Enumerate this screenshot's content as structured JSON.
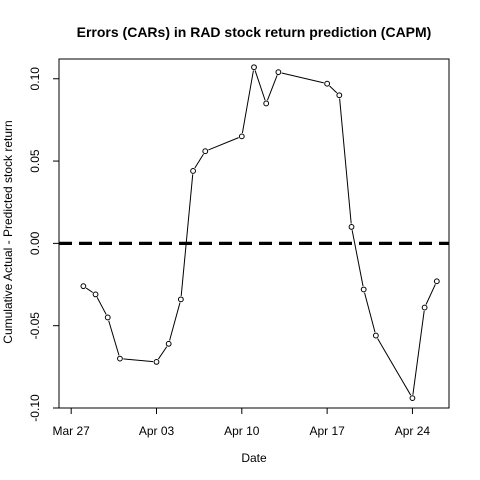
{
  "chart_data": {
    "type": "line",
    "title": "Errors (CARs) in RAD stock return prediction (CAPM)",
    "xlabel": "Date",
    "ylabel": "Cumulative Actual - Predicted stock return",
    "x_ticks": [
      {
        "label": "Mar 27",
        "date": "2017-03-27"
      },
      {
        "label": "Apr 03",
        "date": "2017-04-03"
      },
      {
        "label": "Apr 10",
        "date": "2017-04-10"
      },
      {
        "label": "Apr 17",
        "date": "2017-04-17"
      },
      {
        "label": "Apr 24",
        "date": "2017-04-24"
      }
    ],
    "y_ticks": [
      -0.1,
      -0.05,
      0.0,
      0.05,
      0.1
    ],
    "y_tick_labels": [
      "-0.10",
      "-0.05",
      "0.00",
      "0.05",
      "0.10"
    ],
    "xlim": [
      "2017-03-26",
      "2017-04-27"
    ],
    "ylim": [
      -0.1,
      0.112
    ],
    "reference_line": {
      "y": 0,
      "style": "dashed"
    },
    "grid": false,
    "series": [
      {
        "points": [
          {
            "x": "2017-03-28",
            "y": -0.026
          },
          {
            "x": "2017-03-29",
            "y": -0.031
          },
          {
            "x": "2017-03-30",
            "y": -0.045
          },
          {
            "x": "2017-03-31",
            "y": -0.07
          },
          {
            "x": "2017-04-03",
            "y": -0.072
          },
          {
            "x": "2017-04-04",
            "y": -0.061
          },
          {
            "x": "2017-04-05",
            "y": -0.034
          },
          {
            "x": "2017-04-06",
            "y": 0.044
          },
          {
            "x": "2017-04-07",
            "y": 0.056
          },
          {
            "x": "2017-04-10",
            "y": 0.065
          },
          {
            "x": "2017-04-11",
            "y": 0.107
          },
          {
            "x": "2017-04-12",
            "y": 0.085
          },
          {
            "x": "2017-04-13",
            "y": 0.104
          },
          {
            "x": "2017-04-17",
            "y": 0.097
          },
          {
            "x": "2017-04-18",
            "y": 0.09
          },
          {
            "x": "2017-04-19",
            "y": 0.01
          },
          {
            "x": "2017-04-20",
            "y": -0.028
          },
          {
            "x": "2017-04-21",
            "y": -0.056
          },
          {
            "x": "2017-04-24",
            "y": -0.094
          },
          {
            "x": "2017-04-25",
            "y": -0.039
          },
          {
            "x": "2017-04-26",
            "y": -0.023
          }
        ]
      }
    ]
  }
}
